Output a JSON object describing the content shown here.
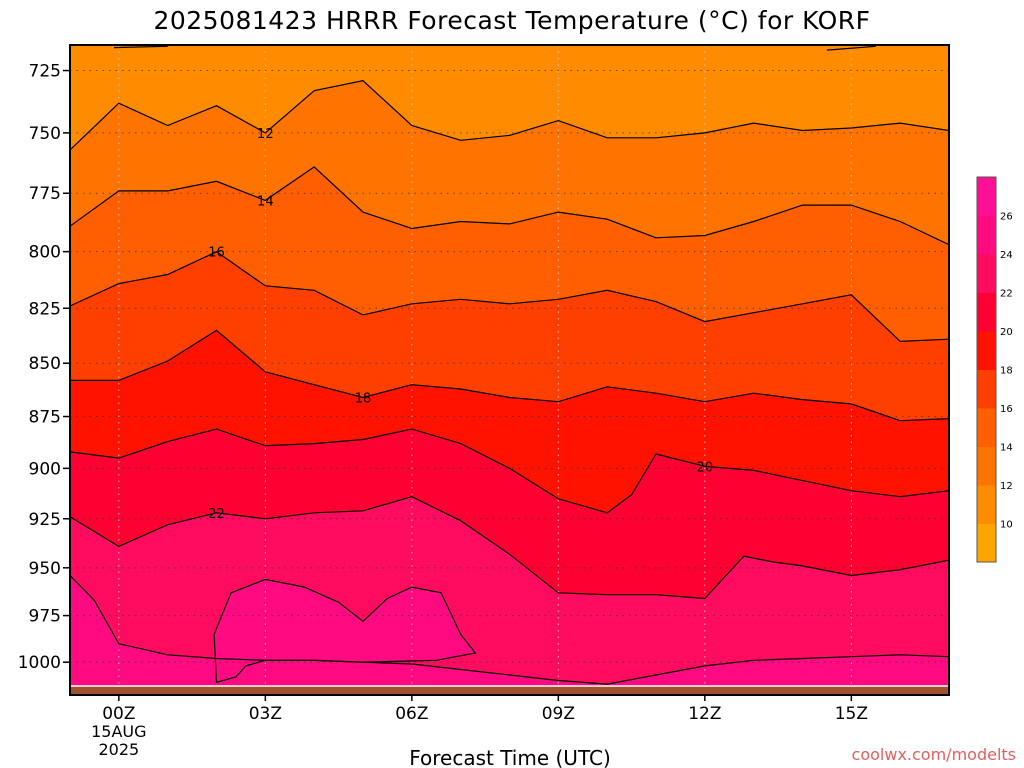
{
  "chart_data": {
    "type": "contour",
    "title": "2025081423 HRRR Forecast Temperature (°C) for KORF",
    "xlabel": "Forecast Time (UTC)",
    "ylabel": "",
    "credit": "coolwx.com/modelts",
    "x_axis": {
      "unit": "forecast hour",
      "range": [
        -1,
        17
      ],
      "ticks": [
        {
          "hour": 0,
          "label": "00Z"
        },
        {
          "hour": 3,
          "label": "03Z"
        },
        {
          "hour": 6,
          "label": "06Z"
        },
        {
          "hour": 9,
          "label": "09Z"
        },
        {
          "hour": 12,
          "label": "12Z"
        },
        {
          "hour": 15,
          "label": "15Z"
        }
      ],
      "date_label": [
        "15AUG",
        "2025"
      ]
    },
    "y_axis": {
      "unit": "hPa",
      "scale": "log",
      "range": [
        1018,
        715
      ],
      "ticks": [
        725,
        750,
        775,
        800,
        825,
        850,
        875,
        900,
        925,
        950,
        975,
        1000
      ]
    },
    "grid": true,
    "surface_pressure": 1013,
    "colorbar": {
      "ticks": [
        10,
        12,
        14,
        16,
        18,
        20,
        22,
        24,
        26
      ],
      "levels": [
        {
          "min": 8,
          "max": 10,
          "color": "#ffa500"
        },
        {
          "min": 10,
          "max": 12,
          "color": "#ff8c00"
        },
        {
          "min": 12,
          "max": 14,
          "color": "#ff7400"
        },
        {
          "min": 14,
          "max": 16,
          "color": "#ff5f00"
        },
        {
          "min": 16,
          "max": 18,
          "color": "#ff3f00"
        },
        {
          "min": 18,
          "max": 20,
          "color": "#ff1200"
        },
        {
          "min": 20,
          "max": 22,
          "color": "#ff0033"
        },
        {
          "min": 22,
          "max": 24,
          "color": "#ff0c60"
        },
        {
          "min": 24,
          "max": 26,
          "color": "#ff0a80"
        },
        {
          "min": 26,
          "max": 28,
          "color": "#ff0f94"
        }
      ],
      "ground_color": "#a0522d"
    },
    "contours": [
      {
        "temp": 12,
        "label": "12",
        "label_at": [
          3,
          750
        ],
        "points": [
          [
            -1,
            757
          ],
          [
            0,
            738
          ],
          [
            1,
            747
          ],
          [
            2,
            739
          ],
          [
            3,
            750
          ],
          [
            4,
            733
          ],
          [
            5,
            729
          ],
          [
            6,
            747
          ],
          [
            7,
            753
          ],
          [
            8,
            751
          ],
          [
            9,
            745
          ],
          [
            10,
            752
          ],
          [
            11,
            752
          ],
          [
            12,
            750
          ],
          [
            13,
            746
          ],
          [
            14,
            749
          ],
          [
            15,
            748
          ],
          [
            16,
            746
          ],
          [
            17,
            749
          ]
        ]
      },
      {
        "temp": 14,
        "label": "14",
        "label_at": [
          3,
          778
        ],
        "points": [
          [
            -1,
            789
          ],
          [
            0,
            774
          ],
          [
            1,
            774
          ],
          [
            2,
            770
          ],
          [
            3,
            778
          ],
          [
            4,
            764
          ],
          [
            5,
            783
          ],
          [
            6,
            790
          ],
          [
            7,
            787
          ],
          [
            8,
            788
          ],
          [
            9,
            783
          ],
          [
            10,
            786
          ],
          [
            11,
            794
          ],
          [
            12,
            793
          ],
          [
            13,
            787
          ],
          [
            14,
            780
          ],
          [
            15,
            780
          ],
          [
            16,
            787
          ],
          [
            17,
            797
          ]
        ]
      },
      {
        "temp": 16,
        "label": "16",
        "label_at": [
          2,
          800
        ],
        "points": [
          [
            -1,
            824
          ],
          [
            0,
            814
          ],
          [
            1,
            810
          ],
          [
            2,
            800
          ],
          [
            3,
            815
          ],
          [
            4,
            817
          ],
          [
            5,
            828
          ],
          [
            6,
            823
          ],
          [
            7,
            821
          ],
          [
            8,
            823
          ],
          [
            9,
            821
          ],
          [
            10,
            817
          ],
          [
            11,
            822
          ],
          [
            12,
            831
          ],
          [
            13,
            827
          ],
          [
            14,
            823
          ],
          [
            15,
            819
          ],
          [
            16,
            840
          ],
          [
            17,
            839
          ]
        ]
      },
      {
        "temp": 18,
        "label": "18",
        "label_at": [
          5,
          866
        ],
        "points": [
          [
            -1,
            858
          ],
          [
            0,
            858
          ],
          [
            1,
            849
          ],
          [
            2,
            835
          ],
          [
            3,
            854
          ],
          [
            4,
            860
          ],
          [
            5,
            866
          ],
          [
            6,
            860
          ],
          [
            7,
            862
          ],
          [
            8,
            866
          ],
          [
            9,
            868
          ],
          [
            10,
            861
          ],
          [
            11,
            864
          ],
          [
            12,
            868
          ],
          [
            13,
            864
          ],
          [
            14,
            867
          ],
          [
            15,
            869
          ],
          [
            16,
            877
          ],
          [
            17,
            876
          ]
        ]
      },
      {
        "temp": 20,
        "label": "20",
        "label_at": [
          12,
          899
        ],
        "points": [
          [
            -1,
            892
          ],
          [
            0,
            895
          ],
          [
            1,
            887
          ],
          [
            2,
            881
          ],
          [
            3,
            889
          ],
          [
            4,
            888
          ],
          [
            5,
            886
          ],
          [
            6,
            881
          ],
          [
            7,
            888
          ],
          [
            8,
            900
          ],
          [
            9,
            915
          ],
          [
            10,
            922
          ],
          [
            10.5,
            913
          ],
          [
            11,
            893
          ],
          [
            12,
            899
          ],
          [
            13,
            901
          ],
          [
            14,
            906
          ],
          [
            15,
            911
          ],
          [
            16,
            914
          ],
          [
            17,
            911
          ]
        ]
      },
      {
        "temp": 22,
        "label": "22",
        "label_at": [
          2,
          922
        ],
        "points": [
          [
            -1,
            924
          ],
          [
            0,
            939
          ],
          [
            1,
            928
          ],
          [
            2,
            922
          ],
          [
            3,
            925
          ],
          [
            4,
            922
          ],
          [
            5,
            921
          ],
          [
            6,
            914
          ],
          [
            7,
            926
          ],
          [
            8,
            943
          ],
          [
            9,
            963
          ],
          [
            10,
            964
          ],
          [
            11,
            964
          ],
          [
            12,
            966
          ],
          [
            12.8,
            944
          ],
          [
            13.4,
            947
          ],
          [
            14,
            949
          ],
          [
            15,
            954
          ],
          [
            16,
            951
          ],
          [
            17,
            946
          ]
        ]
      },
      {
        "temp": 24,
        "label": "",
        "label_at": null,
        "points": [
          [
            -1,
            954
          ],
          [
            -0.5,
            967
          ],
          [
            0,
            990
          ],
          [
            1,
            996
          ],
          [
            2,
            998
          ],
          [
            3,
            999
          ],
          [
            4,
            999
          ],
          [
            5,
            1000
          ],
          [
            6,
            1001
          ],
          [
            7,
            1004
          ],
          [
            8,
            1007
          ],
          [
            9,
            1010
          ],
          [
            10,
            1012
          ],
          [
            11,
            1007
          ],
          [
            12,
            1002
          ],
          [
            13,
            999
          ],
          [
            14,
            998
          ],
          [
            15,
            997
          ],
          [
            16,
            996
          ],
          [
            17,
            997
          ]
        ]
      }
    ],
    "closed_contours": [
      {
        "temp": 24,
        "label": "",
        "points": [
          [
            2.0,
            1011
          ],
          [
            1.95,
            985
          ],
          [
            2.3,
            963
          ],
          [
            3.0,
            956
          ],
          [
            3.8,
            960
          ],
          [
            4.5,
            968
          ],
          [
            5.0,
            978
          ],
          [
            5.5,
            966
          ],
          [
            6.0,
            960
          ],
          [
            6.6,
            963
          ],
          [
            7.0,
            985
          ],
          [
            7.3,
            995
          ],
          [
            6.5,
            999
          ],
          [
            5.0,
            1000
          ],
          [
            4.0,
            999
          ],
          [
            3.0,
            999
          ],
          [
            2.6,
            1002
          ],
          [
            2.4,
            1008
          ]
        ]
      }
    ],
    "top_fragments": [
      {
        "points": [
          [
            -0.1,
            716
          ],
          [
            1.0,
            715.5
          ]
        ]
      },
      {
        "points": [
          [
            14.5,
            717
          ],
          [
            15.5,
            715.5
          ]
        ]
      }
    ]
  }
}
